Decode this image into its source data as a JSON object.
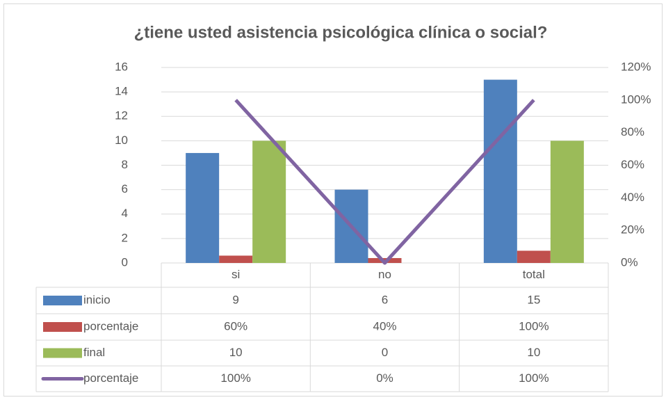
{
  "chart_data": {
    "type": "bar",
    "title": "¿tiene usted asistencia psicológica clínica o social?",
    "categories": [
      "si",
      "no",
      "total"
    ],
    "series": [
      {
        "name": "inicio",
        "color": "#4f81bd",
        "values": [
          9,
          6,
          15
        ]
      },
      {
        "name": "porcentaje",
        "color": "#c0504d",
        "values": [
          0.6,
          0.4,
          1
        ],
        "value_labels": [
          "60%",
          "40%",
          "100%"
        ]
      },
      {
        "name": "final",
        "color": "#9bbb59",
        "values": [
          10,
          0,
          10
        ]
      },
      {
        "name": "porcentaje",
        "type": "line",
        "color": "#8064a2",
        "axis": "y2",
        "values": [
          100,
          0,
          100
        ],
        "value_labels": [
          "100%",
          "0%",
          "100%"
        ]
      }
    ],
    "ylim": [
      0,
      16
    ],
    "yticks": [
      0,
      2,
      4,
      6,
      8,
      10,
      12,
      14,
      16
    ],
    "y2lim": [
      0,
      120
    ],
    "y2ticks": [
      {
        "value": 0,
        "label": "0%"
      },
      {
        "value": 20,
        "label": "20%"
      },
      {
        "value": 40,
        "label": "40%"
      },
      {
        "value": 60,
        "label": "60%"
      },
      {
        "value": 80,
        "label": "80%"
      },
      {
        "value": 100,
        "label": "100%"
      },
      {
        "value": 120,
        "label": "120%"
      }
    ],
    "grid": true,
    "data_table": true
  }
}
